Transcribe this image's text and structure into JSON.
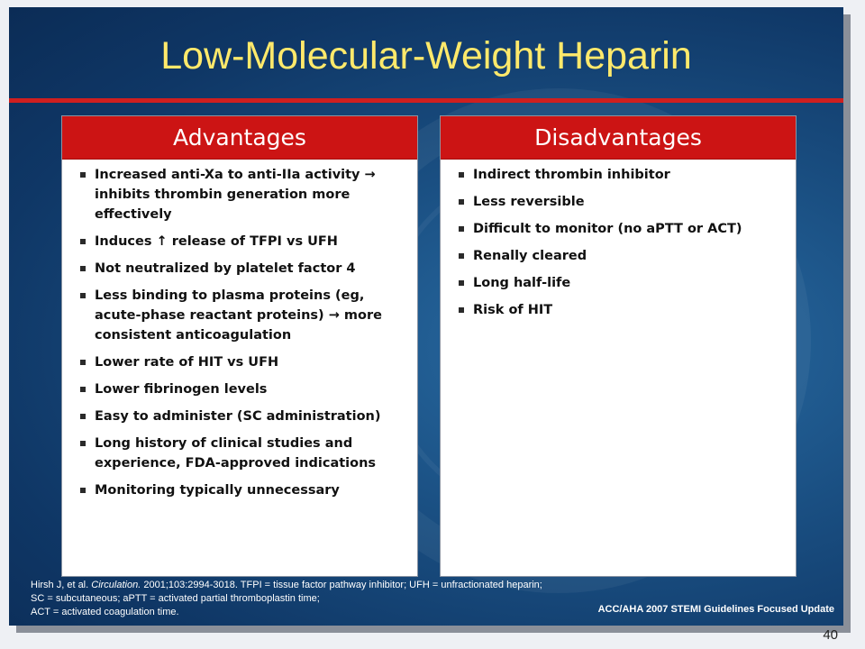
{
  "slide": {
    "title": "Low-Molecular-Weight Heparin",
    "page_number": "40"
  },
  "advantages": {
    "heading": "Advantages",
    "items": [
      "Increased anti-Xa to anti-IIa activity → inhibits thrombin generation more effectively",
      "Induces ↑ release of TFPI vs UFH",
      "Not neutralized by platelet factor 4",
      "Less binding to plasma proteins (eg, acute-phase reactant proteins) → more consistent anticoagulation",
      "Lower rate of HIT vs UFH",
      "Lower fibrinogen levels",
      "Easy to administer (SC administration)",
      "Long history of clinical studies and experience, FDA-approved indications",
      "Monitoring typically unnecessary"
    ]
  },
  "disadvantages": {
    "heading": "Disadvantages",
    "items": [
      "Indirect thrombin inhibitor",
      "Less reversible",
      "Difficult to monitor (no aPTT or ACT)",
      "Renally cleared",
      "Long half-life",
      "Risk of HIT"
    ]
  },
  "footnote": {
    "authors": "Hirsh J, et al.",
    "journal": "Circulation.",
    "citation_rest": "2001;103:2994-3018. TFPI = tissue factor pathway inhibitor; UFH = unfractionated heparin;",
    "line2": "SC = subcutaneous; aPTT = activated partial thromboplastin time;",
    "line3": "ACT = activated coagulation time."
  },
  "credit": "ACC/AHA 2007 STEMI Guidelines Focused Update",
  "colors": {
    "title": "#ffe96b",
    "header_red": "#cc1414",
    "background_blue": "#0f3766"
  }
}
